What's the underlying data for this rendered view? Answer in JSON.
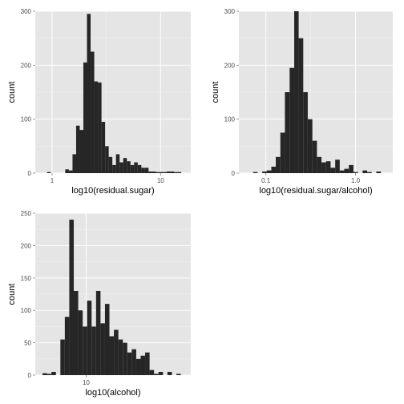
{
  "colors": {
    "panel": "#e5e5e5",
    "bar": "#262626",
    "grid": "#ffffff",
    "tick_text": "#4d4d4d"
  },
  "chart_data": [
    {
      "type": "bar",
      "subtype": "histogram",
      "xlabel": "log10(residual.sugar)",
      "ylabel": "count",
      "x_scale": "log10",
      "xlim": [
        0.7,
        19
      ],
      "ylim": [
        0,
        300
      ],
      "x_ticks": [
        1,
        10
      ],
      "x_tick_labels": [
        "1",
        "10"
      ],
      "y_ticks": [
        0,
        100,
        200,
        300
      ],
      "y_tick_labels": [
        "0",
        "100",
        "200",
        "300"
      ],
      "grid": true,
      "bin_edges": [
        0.9,
        0.972,
        1.05,
        1.134,
        1.225,
        1.323,
        1.428,
        1.543,
        1.666,
        1.799,
        1.943,
        2.098,
        2.266,
        2.447,
        2.643,
        2.855,
        3.083,
        3.329,
        3.595,
        3.883,
        4.194,
        4.529,
        4.891,
        5.282,
        5.705,
        6.161,
        6.653,
        7.185,
        7.76,
        8.381,
        9.052,
        9.775,
        10.558,
        11.402,
        12.314,
        13.299,
        14.363,
        15.512
      ],
      "values": [
        2,
        0,
        0,
        0,
        0,
        7,
        5,
        35,
        88,
        80,
        205,
        295,
        225,
        170,
        168,
        95,
        50,
        30,
        15,
        35,
        20,
        28,
        22,
        15,
        20,
        15,
        10,
        10,
        3,
        3,
        2,
        2,
        2,
        3,
        3,
        2,
        2
      ]
    },
    {
      "type": "bar",
      "subtype": "histogram",
      "xlabel": "log10(residual.sugar/alcohol)",
      "ylabel": "count",
      "x_scale": "log10",
      "xlim": [
        0.05,
        2.6
      ],
      "ylim": [
        0,
        300
      ],
      "x_ticks": [
        0.1,
        1
      ],
      "x_tick_labels": [
        "0.1",
        "1.0"
      ],
      "y_ticks": [
        0,
        100,
        200,
        300
      ],
      "y_tick_labels": [
        "0",
        "100",
        "200",
        "300"
      ],
      "grid": true,
      "bin_edges": [
        0.064,
        0.072,
        0.081,
        0.091,
        0.102,
        0.115,
        0.129,
        0.145,
        0.163,
        0.184,
        0.207,
        0.232,
        0.261,
        0.293,
        0.33,
        0.371,
        0.417,
        0.469,
        0.527,
        0.593,
        0.666,
        0.749,
        0.842,
        0.947,
        1.065,
        1.198,
        1.347,
        1.514,
        1.703,
        1.914
      ],
      "values": [
        0,
        2,
        0,
        3,
        5,
        12,
        30,
        75,
        150,
        195,
        300,
        250,
        150,
        100,
        60,
        30,
        20,
        22,
        10,
        25,
        5,
        8,
        15,
        2,
        0,
        5,
        2,
        0,
        3
      ]
    },
    {
      "type": "bar",
      "subtype": "histogram",
      "xlabel": "log10(alcohol)",
      "ylabel": "count",
      "x_scale": "log10",
      "xlim": [
        8.16,
        15.2
      ],
      "ylim": [
        0,
        250
      ],
      "x_ticks": [
        10
      ],
      "x_tick_labels": [
        "10"
      ],
      "y_ticks": [
        0,
        50,
        100,
        150,
        200,
        250
      ],
      "y_tick_labels": [
        "0",
        "50",
        "100",
        "150",
        "200",
        "250"
      ],
      "grid": true,
      "bin_edges": [
        8.4,
        8.551,
        8.705,
        8.862,
        9.022,
        9.184,
        9.349,
        9.518,
        9.689,
        9.864,
        10.041,
        10.222,
        10.406,
        10.593,
        10.784,
        10.978,
        11.176,
        11.377,
        11.582,
        11.79,
        12.003,
        12.219,
        12.439,
        12.663,
        12.891,
        13.123,
        13.359,
        13.6,
        13.845,
        14.094,
        14.348,
        14.606
      ],
      "values": [
        3,
        2,
        5,
        0,
        55,
        90,
        240,
        130,
        100,
        75,
        115,
        75,
        130,
        80,
        110,
        60,
        70,
        55,
        50,
        35,
        40,
        25,
        30,
        35,
        8,
        2,
        5,
        0,
        5,
        0,
        2
      ]
    }
  ]
}
